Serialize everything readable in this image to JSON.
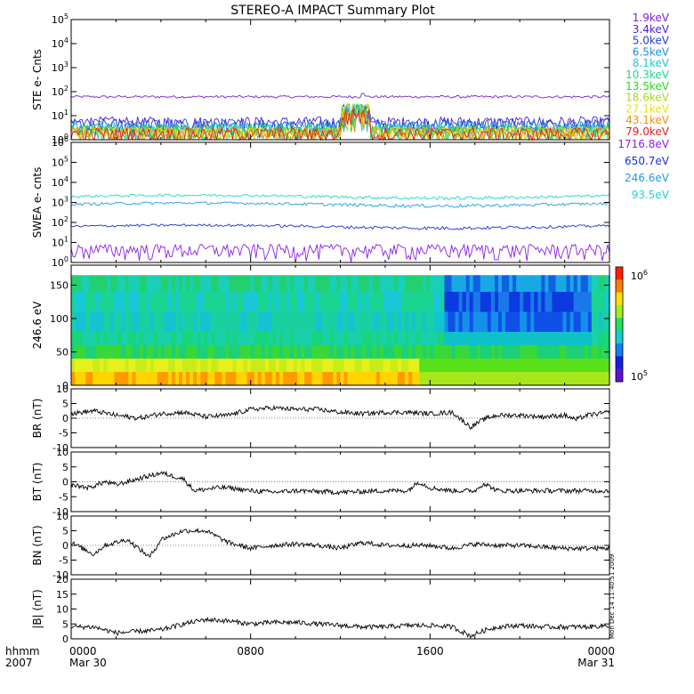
{
  "title": "STEREO-A IMPACT Summary Plot",
  "timestamp_note": "Mon Dec 14 11:40:51 2009",
  "xaxis": {
    "left_labels": [
      "hhmm",
      "2007"
    ],
    "ticks": [
      {
        "label": "0000",
        "sub": "Mar 30",
        "t": 0
      },
      {
        "label": "0800",
        "sub": "",
        "t": 8
      },
      {
        "label": "1600",
        "sub": "",
        "t": 16
      },
      {
        "label": "0000",
        "sub": "Mar 31",
        "t": 24
      }
    ],
    "range_hours": [
      0,
      24
    ]
  },
  "chart_data": [
    {
      "type": "line",
      "ylabel": "STE e- Cnts",
      "yscale": "log",
      "ylim": [
        1,
        100000
      ],
      "yticks": [
        "10^0",
        "10^1",
        "10^2",
        "10^3",
        "10^4",
        "10^5"
      ],
      "legend_placement": "right",
      "series": [
        {
          "name": "1.9keV",
          "color": "#7a1fd6",
          "level": 60
        },
        {
          "name": "3.4keV",
          "color": "#4a1fd6",
          "level": 3
        },
        {
          "name": "5.0keV",
          "color": "#1f3fd6",
          "level": 2.5
        },
        {
          "name": "6.5keV",
          "color": "#1f8fd6",
          "level": 2
        },
        {
          "name": "8.1keV",
          "color": "#1fc8d6",
          "level": 1.6
        },
        {
          "name": "10.3keV",
          "color": "#1fd690",
          "level": 1.4
        },
        {
          "name": "13.5keV",
          "color": "#2ad61f",
          "level": 1.3
        },
        {
          "name": "18.6keV",
          "color": "#a8d61f",
          "level": 1.2
        },
        {
          "name": "27.1keV",
          "color": "#f0e010",
          "level": 1.1
        },
        {
          "name": "43.1keV",
          "color": "#f09010",
          "level": 1.05
        },
        {
          "name": "79.0keV",
          "color": "#e02020",
          "level": 1.02
        }
      ]
    },
    {
      "type": "line",
      "ylabel": "SWEA e- cnts",
      "yscale": "log",
      "ylim": [
        1,
        1000000
      ],
      "yticks": [
        "10^0",
        "10^1",
        "10^2",
        "10^3",
        "10^4",
        "10^5",
        "10^6"
      ],
      "legend_placement": "right",
      "series": [
        {
          "name": "1716.8eV",
          "color": "#8a1fe8",
          "level": 3
        },
        {
          "name": "650.7eV",
          "color": "#1f2fd6",
          "level": 70
        },
        {
          "name": "246.6eV",
          "color": "#1f9ae8",
          "level": 900
        },
        {
          "name": "93.5eV",
          "color": "#1fd6c8",
          "level": 2200
        }
      ]
    },
    {
      "type": "heatmap",
      "ylabel": "246.6 eV",
      "ylim": [
        0,
        180
      ],
      "yticks": [
        0,
        50,
        100,
        150
      ],
      "colorbar": {
        "label_top": "10^6",
        "label_bottom": "10^5"
      }
    },
    {
      "type": "line",
      "ylabel": "BR (nT)",
      "ylim": [
        -10,
        10
      ],
      "yticks": [
        -10,
        -5,
        0,
        5,
        10
      ],
      "series": [
        {
          "name": "",
          "points": [
            [
              0,
              1.5
            ],
            [
              1,
              2.5
            ],
            [
              2,
              1
            ],
            [
              3,
              0
            ],
            [
              4,
              1.5
            ],
            [
              5,
              2
            ],
            [
              6,
              0.5
            ],
            [
              7,
              1
            ],
            [
              8,
              3
            ],
            [
              9,
              3.5
            ],
            [
              10,
              3
            ],
            [
              11,
              3
            ],
            [
              12,
              2
            ],
            [
              13,
              1.5
            ],
            [
              14,
              2
            ],
            [
              15,
              2
            ],
            [
              16,
              1.5
            ],
            [
              17,
              2
            ],
            [
              17.8,
              -3
            ],
            [
              18.5,
              0
            ],
            [
              19,
              1
            ],
            [
              20,
              1
            ],
            [
              21,
              0.5
            ],
            [
              22,
              1
            ],
            [
              22.5,
              -0.5
            ],
            [
              23,
              1
            ],
            [
              24,
              2
            ]
          ]
        }
      ]
    },
    {
      "type": "line",
      "ylabel": "BT (nT)",
      "ylim": [
        -10,
        10
      ],
      "yticks": [
        -10,
        -5,
        0,
        5,
        10
      ],
      "series": [
        {
          "name": "",
          "points": [
            [
              0,
              -1
            ],
            [
              0.8,
              -2
            ],
            [
              1.5,
              0
            ],
            [
              2,
              -1
            ],
            [
              3,
              1
            ],
            [
              4,
              3
            ],
            [
              5,
              1
            ],
            [
              5.5,
              -3
            ],
            [
              6.5,
              -2
            ],
            [
              7,
              -2
            ],
            [
              8,
              -3
            ],
            [
              9,
              -3.5
            ],
            [
              10,
              -3
            ],
            [
              12,
              -3.5
            ],
            [
              14,
              -3
            ],
            [
              15,
              -3
            ],
            [
              15.5,
              0
            ],
            [
              16,
              -2
            ],
            [
              17,
              -3
            ],
            [
              18,
              -3
            ],
            [
              18.4,
              -0.5
            ],
            [
              19,
              -3
            ],
            [
              21,
              -3
            ],
            [
              22,
              -3
            ],
            [
              24,
              -3
            ]
          ]
        }
      ]
    },
    {
      "type": "line",
      "ylabel": "BN (nT)",
      "ylim": [
        -10,
        10
      ],
      "yticks": [
        -10,
        -5,
        0,
        5,
        10
      ],
      "series": [
        {
          "name": "",
          "points": [
            [
              0,
              1
            ],
            [
              1,
              -3
            ],
            [
              1.5,
              0
            ],
            [
              2.5,
              2
            ],
            [
              3,
              -1
            ],
            [
              3.5,
              -4
            ],
            [
              4,
              2
            ],
            [
              5,
              5
            ],
            [
              6,
              5
            ],
            [
              7,
              1
            ],
            [
              8,
              -1
            ],
            [
              9,
              0
            ],
            [
              10,
              0.5
            ],
            [
              11,
              0
            ],
            [
              12,
              -1
            ],
            [
              13,
              1
            ],
            [
              14,
              0
            ],
            [
              15,
              0
            ],
            [
              16,
              0
            ],
            [
              17,
              -1
            ],
            [
              18,
              0.5
            ],
            [
              19,
              0
            ],
            [
              20,
              0
            ],
            [
              21,
              -0.5
            ],
            [
              22,
              -1
            ],
            [
              23,
              -1
            ],
            [
              24,
              -1
            ]
          ]
        }
      ]
    },
    {
      "type": "line",
      "ylabel": "|B| (nT)",
      "ylim": [
        0,
        20
      ],
      "yticks": [
        0,
        5,
        10,
        15,
        20
      ],
      "series": [
        {
          "name": "",
          "points": [
            [
              0,
              4
            ],
            [
              1,
              4
            ],
            [
              2,
              2
            ],
            [
              3,
              2.5
            ],
            [
              4,
              3
            ],
            [
              5,
              5
            ],
            [
              6,
              6.5
            ],
            [
              7,
              6
            ],
            [
              8,
              5
            ],
            [
              9,
              5.5
            ],
            [
              10,
              5.5
            ],
            [
              11,
              5
            ],
            [
              12,
              4.5
            ],
            [
              13,
              4
            ],
            [
              14,
              4
            ],
            [
              15,
              4.5
            ],
            [
              16,
              4.5
            ],
            [
              17,
              4
            ],
            [
              17.8,
              1
            ],
            [
              18.5,
              3
            ],
            [
              19,
              4
            ],
            [
              20,
              4.5
            ],
            [
              21,
              4
            ],
            [
              22,
              4
            ],
            [
              23,
              4
            ],
            [
              24,
              4.5
            ]
          ]
        }
      ]
    }
  ]
}
